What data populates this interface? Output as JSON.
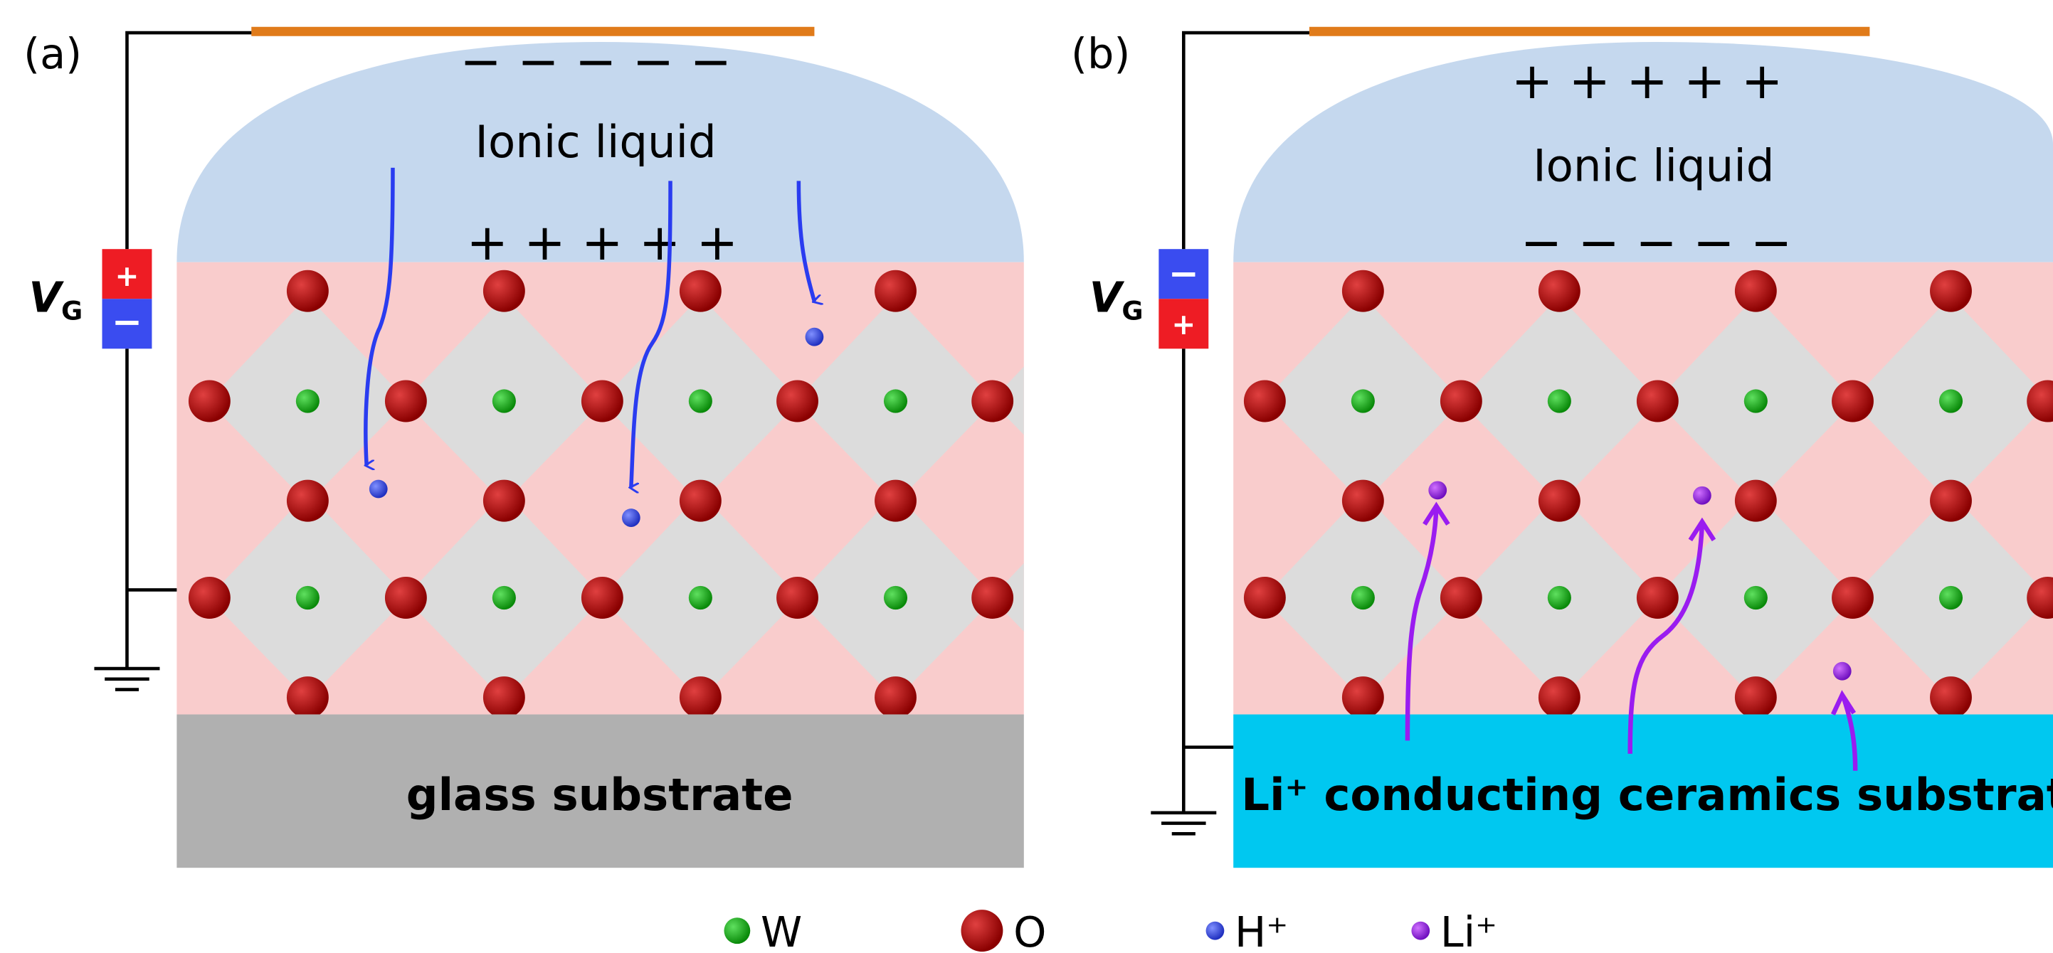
{
  "panels": [
    {
      "label": "(a)",
      "liquid": "Ionic liquid",
      "top_charges": "− − − − −",
      "bottom_charges": "+ + + + +",
      "gate": {
        "symbol": "V",
        "subscript": "G",
        "top_sign": "+",
        "bottom_sign": "−"
      },
      "substrate": "glass substrate"
    },
    {
      "label": "(b)",
      "liquid": "Ionic liquid",
      "top_charges": "+ + + + +",
      "bottom_charges": "− − − − −",
      "gate": {
        "symbol": "V",
        "subscript": "G",
        "top_sign": "−",
        "bottom_sign": "+"
      },
      "substrate": "Li⁺ conducting ceramics substrate"
    }
  ],
  "legend": [
    "W",
    "O",
    "H⁺",
    "Li⁺"
  ]
}
